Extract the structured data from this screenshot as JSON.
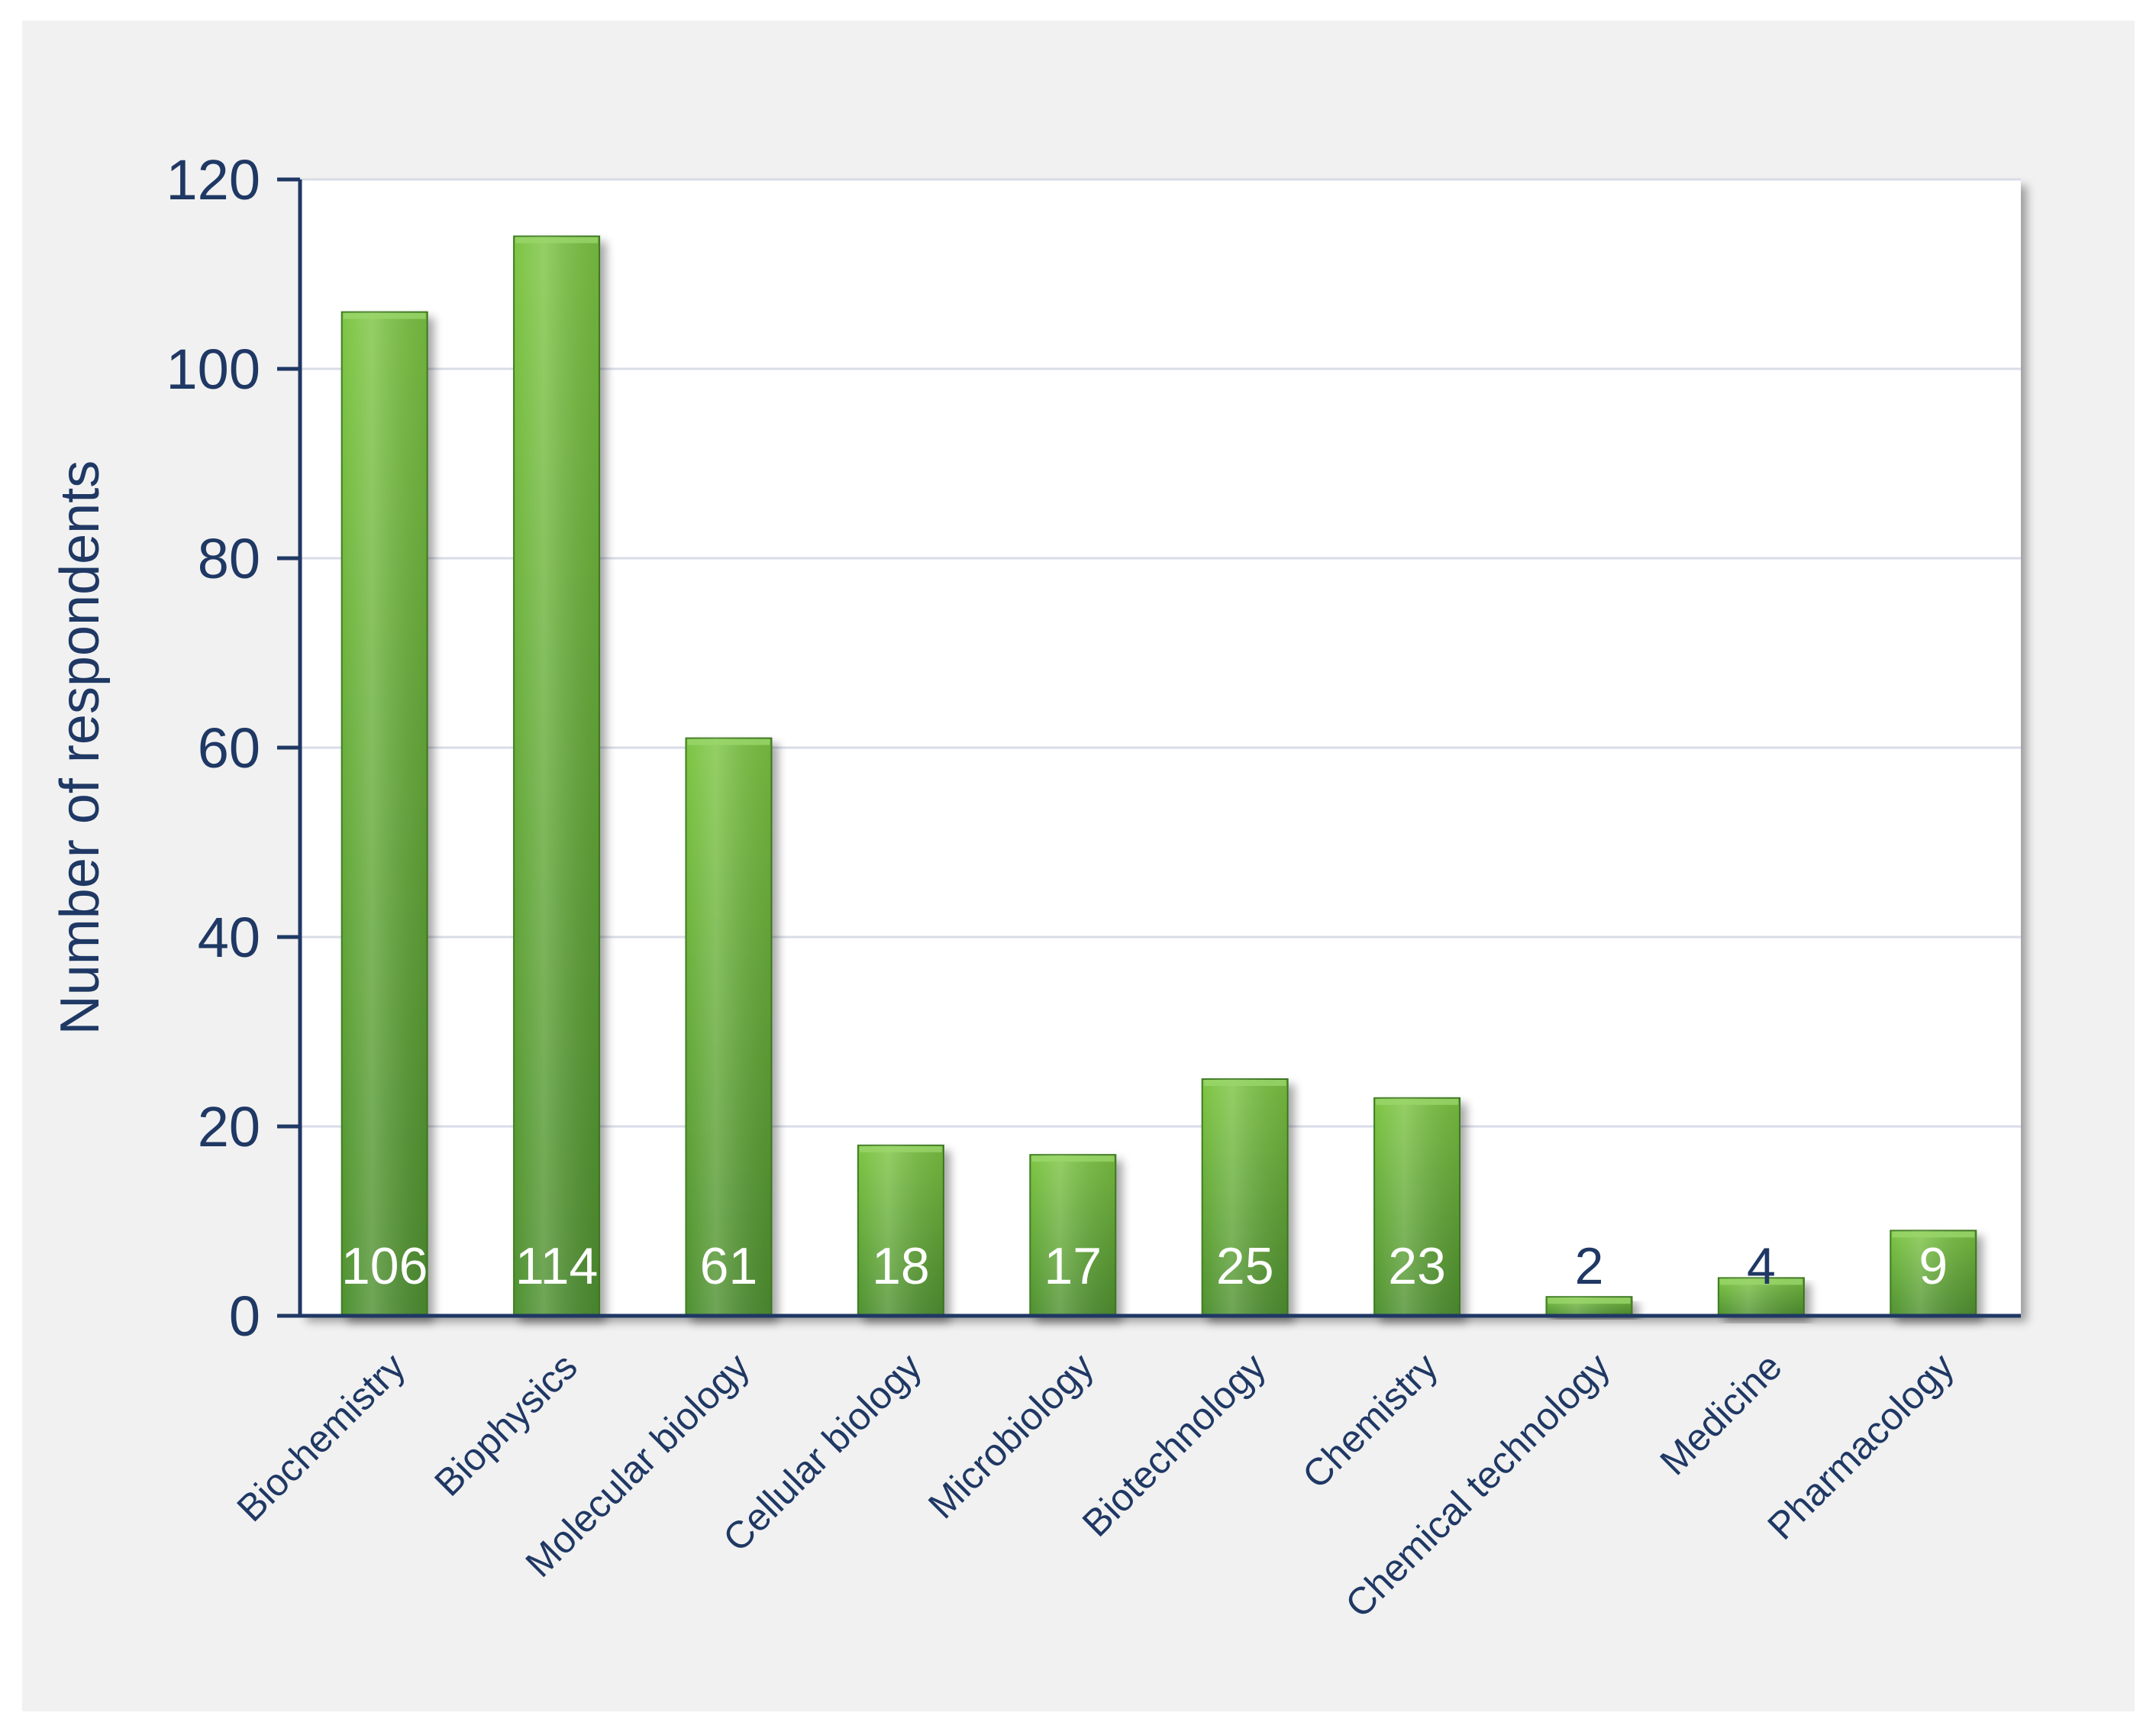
{
  "chart_data": {
    "type": "bar",
    "title": "",
    "xlabel": "",
    "ylabel": "Number of respondents",
    "ylim": [
      0,
      120
    ],
    "yticks": [
      0,
      20,
      40,
      60,
      80,
      100,
      120
    ],
    "grid": "horizontal",
    "legend": "none",
    "categories": [
      "Biochemistry",
      "Biophysics",
      "Molecular biology",
      "Cellular biology",
      "Microbiology",
      "Biotechnology",
      "Chemistry",
      "Chemical technology",
      "Medicine",
      "Pharmacology"
    ],
    "values": [
      106,
      114,
      61,
      18,
      17,
      25,
      23,
      2,
      4,
      9
    ],
    "colors": {
      "bar_light": "#7dc544",
      "bar_dark": "#4f9130",
      "text": "#1f3864",
      "data_label_inside": "#ffffff",
      "data_label_outside": "#1f3864",
      "grid": "#d9dde8",
      "plot_background": "#ffffff",
      "figure_background": "#f1f1f1"
    }
  }
}
